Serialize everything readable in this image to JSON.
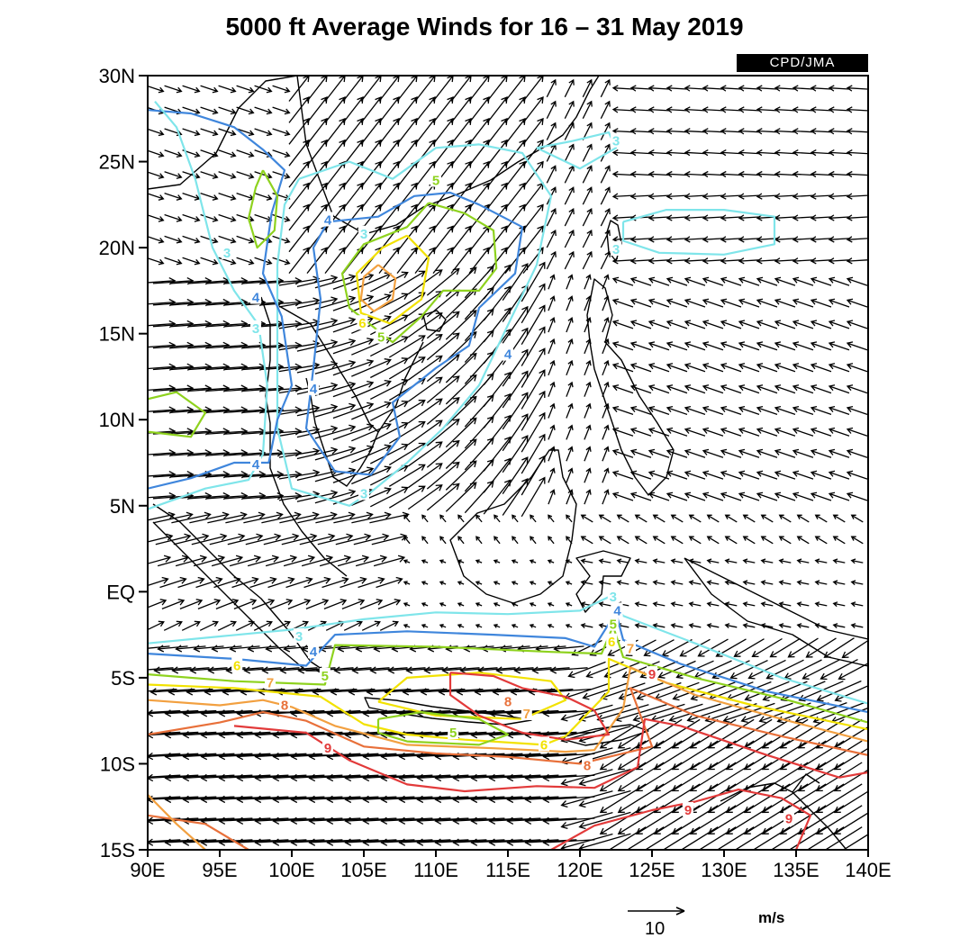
{
  "title": "5000 ft Average Winds for 16 – 31 May 2019",
  "credit": "CPD/JMA",
  "units": "m/s",
  "reference_vector": {
    "label": "10",
    "magnitude": 10
  },
  "map": {
    "lon_range": [
      90,
      140
    ],
    "lat_range": [
      -15,
      30
    ],
    "lat_ticks": [
      {
        "value": 30,
        "label": "30N"
      },
      {
        "value": 25,
        "label": "25N"
      },
      {
        "value": 20,
        "label": "20N"
      },
      {
        "value": 15,
        "label": "15N"
      },
      {
        "value": 10,
        "label": "10N"
      },
      {
        "value": 5,
        "label": "5N"
      },
      {
        "value": 0,
        "label": "EQ"
      },
      {
        "value": -5,
        "label": "5S"
      },
      {
        "value": -10,
        "label": "10S"
      },
      {
        "value": -15,
        "label": "15S"
      }
    ],
    "lon_ticks": [
      {
        "value": 90,
        "label": "90E"
      },
      {
        "value": 95,
        "label": "95E"
      },
      {
        "value": 100,
        "label": "100E"
      },
      {
        "value": 105,
        "label": "105E"
      },
      {
        "value": 110,
        "label": "110E"
      },
      {
        "value": 115,
        "label": "115E"
      },
      {
        "value": 120,
        "label": "120E"
      },
      {
        "value": 125,
        "label": "125E"
      },
      {
        "value": 130,
        "label": "130E"
      },
      {
        "value": 135,
        "label": "135E"
      },
      {
        "value": 140,
        "label": "140E"
      }
    ]
  },
  "contour_colors": {
    "3": "#7fe5ea",
    "4": "#3f86dc",
    "5": "#8ed21e",
    "6": "#f2e200",
    "7": "#f2a040",
    "8": "#e8703a",
    "9": "#e23a3a"
  },
  "contours": [
    {
      "level": 3,
      "points": [
        [
          90,
          -3
        ],
        [
          95,
          -2.6
        ],
        [
          100,
          -2.2
        ],
        [
          105,
          -1.6
        ],
        [
          110,
          -1.2
        ],
        [
          115,
          -1.3
        ],
        [
          120,
          -1.1
        ],
        [
          122,
          -0.3
        ],
        [
          123,
          -1.4
        ],
        [
          128,
          -3
        ],
        [
          134,
          -5
        ],
        [
          140,
          -6.5
        ]
      ]
    },
    {
      "level": 4,
      "points": [
        [
          90,
          -3.6
        ],
        [
          96,
          -3.9
        ],
        [
          101,
          -4.3
        ],
        [
          103,
          -2.5
        ],
        [
          108,
          -2.3
        ],
        [
          114,
          -2.5
        ],
        [
          119,
          -2.7
        ],
        [
          121,
          -3.2
        ],
        [
          122.5,
          -1.2
        ],
        [
          123,
          -2.8
        ],
        [
          127,
          -4.2
        ],
        [
          133,
          -5.8
        ],
        [
          140,
          -7
        ]
      ]
    },
    {
      "level": 5,
      "points": [
        [
          90,
          -4.8
        ],
        [
          96,
          -5.2
        ],
        [
          102.3,
          -5.4
        ],
        [
          103,
          -3.1
        ],
        [
          110,
          -3.2
        ],
        [
          118,
          -3.5
        ],
        [
          121.5,
          -3.6
        ],
        [
          122.3,
          -2
        ],
        [
          123,
          -3.8
        ],
        [
          128,
          -5
        ],
        [
          134,
          -6.2
        ],
        [
          140,
          -7.6
        ]
      ]
    },
    {
      "level": 6,
      "points": [
        [
          90,
          -5.4
        ],
        [
          96,
          -5.6
        ],
        [
          102,
          -6.1
        ],
        [
          105,
          -7.7
        ],
        [
          108,
          -8.3
        ],
        [
          112,
          -8.6
        ],
        [
          117.5,
          -8.9
        ],
        [
          119,
          -8.4
        ],
        [
          122,
          -5.8
        ],
        [
          122,
          -3.9
        ],
        [
          126,
          -5.3
        ],
        [
          132,
          -6.6
        ],
        [
          140,
          -8
        ]
      ]
    },
    {
      "level": 7,
      "points": [
        [
          90,
          -6.3
        ],
        [
          95,
          -6.6
        ],
        [
          98,
          -6.3
        ],
        [
          100,
          -6.7
        ],
        [
          103,
          -7.8
        ],
        [
          108,
          -8.9
        ],
        [
          114,
          -9.1
        ],
        [
          119,
          -9.3
        ],
        [
          121,
          -9.2
        ],
        [
          123,
          -6.8
        ],
        [
          123.5,
          -4.4
        ],
        [
          128,
          -6
        ],
        [
          134,
          -7.4
        ],
        [
          140,
          -8.7
        ]
      ]
    },
    {
      "level": 8,
      "points": [
        [
          90,
          -8.3
        ],
        [
          95,
          -7.6
        ],
        [
          98,
          -7
        ],
        [
          101,
          -7.5
        ],
        [
          105,
          -9
        ],
        [
          110,
          -9.4
        ],
        [
          115,
          -9.6
        ],
        [
          120,
          -10
        ],
        [
          125,
          -9
        ],
        [
          123.5,
          -5.6
        ],
        [
          128,
          -7.2
        ],
        [
          134,
          -8.4
        ],
        [
          140,
          -9.5
        ]
      ]
    },
    {
      "level": 9,
      "points": [
        [
          96,
          -7.8
        ],
        [
          101,
          -8.2
        ],
        [
          104,
          -9.8
        ],
        [
          108,
          -11.2
        ],
        [
          112,
          -11.6
        ],
        [
          117,
          -11.3
        ],
        [
          121,
          -11.4
        ],
        [
          124,
          -10.2
        ],
        [
          124.5,
          -7.4
        ],
        [
          127,
          -7.8
        ],
        [
          133,
          -9.5
        ],
        [
          138,
          -10.8
        ],
        [
          140,
          -10.5
        ]
      ]
    },
    {
      "level": 9,
      "points": [
        [
          118,
          -15
        ],
        [
          121,
          -13.6
        ],
        [
          125,
          -12.7
        ],
        [
          128,
          -12.2
        ],
        [
          131,
          -11.5
        ],
        [
          134,
          -12
        ],
        [
          136,
          -13
        ],
        [
          135,
          -15
        ]
      ]
    },
    {
      "level": 8,
      "points": [
        [
          90,
          -13
        ],
        [
          94,
          -13.5
        ],
        [
          97,
          -15
        ]
      ]
    },
    {
      "level": 7,
      "points": [
        [
          90,
          -11.8
        ],
        [
          92,
          -13.5
        ],
        [
          94,
          -15
        ]
      ]
    },
    {
      "level": 6,
      "points": [
        [
          106,
          -6.4
        ],
        [
          108,
          -5
        ],
        [
          113,
          -4.7
        ],
        [
          118,
          -5.2
        ],
        [
          119,
          -6.3
        ],
        [
          116,
          -7.4
        ],
        [
          110,
          -7.2
        ],
        [
          106,
          -6.4
        ]
      ]
    },
    {
      "level": 5,
      "points": [
        [
          106,
          -7.4
        ],
        [
          109,
          -7
        ],
        [
          113,
          -7.4
        ],
        [
          115,
          -8.3
        ],
        [
          113,
          -8.9
        ],
        [
          108,
          -8.7
        ],
        [
          106,
          -8.2
        ],
        [
          106,
          -7.4
        ]
      ]
    },
    {
      "level": 9,
      "points": [
        [
          111,
          -4.7
        ],
        [
          114,
          -4.9
        ],
        [
          116,
          -5.6
        ],
        [
          119,
          -6.1
        ],
        [
          121,
          -6.9
        ],
        [
          122,
          -8.3
        ],
        [
          119,
          -8.6
        ],
        [
          116,
          -8.2
        ],
        [
          113,
          -7.2
        ],
        [
          111,
          -6
        ],
        [
          111,
          -4.7
        ]
      ]
    },
    {
      "level": 5,
      "points": [
        [
          109.5,
          22.6
        ],
        [
          112,
          22
        ],
        [
          114,
          21
        ],
        [
          114.2,
          18.8
        ],
        [
          113,
          17.5
        ],
        [
          110.5,
          17.5
        ],
        [
          109,
          16
        ],
        [
          107,
          14.5
        ],
        [
          104,
          16.5
        ],
        [
          103.5,
          18.5
        ],
        [
          105,
          20.2
        ],
        [
          108,
          21.2
        ],
        [
          109.5,
          22.6
        ]
      ]
    },
    {
      "level": 6,
      "points": [
        [
          108,
          20.7
        ],
        [
          109.5,
          19.4
        ],
        [
          109,
          17
        ],
        [
          106.8,
          15.6
        ],
        [
          104.8,
          16.2
        ],
        [
          104.5,
          18.5
        ],
        [
          106.3,
          20
        ],
        [
          108,
          20.7
        ]
      ]
    },
    {
      "level": 7,
      "points": [
        [
          106,
          19
        ],
        [
          107.2,
          18.2
        ],
        [
          107,
          17
        ],
        [
          105.7,
          16.3
        ],
        [
          104.8,
          17
        ],
        [
          105,
          18.3
        ],
        [
          106,
          19
        ]
      ]
    },
    {
      "level": 4,
      "points": [
        [
          102.5,
          21.5
        ],
        [
          106,
          21.8
        ],
        [
          108.5,
          23
        ],
        [
          111,
          23.2
        ],
        [
          113,
          22.5
        ],
        [
          116,
          21.2
        ],
        [
          115.5,
          18.5
        ],
        [
          113,
          16.5
        ],
        [
          112.3,
          14.3
        ],
        [
          110,
          13
        ],
        [
          107,
          11
        ],
        [
          107.5,
          9
        ],
        [
          105.5,
          6.8
        ],
        [
          103,
          7
        ],
        [
          101,
          9.5
        ],
        [
          101.5,
          13
        ],
        [
          102,
          17
        ],
        [
          101.5,
          20
        ],
        [
          102.5,
          21.5
        ]
      ]
    },
    {
      "level": 3,
      "points": [
        [
          100.5,
          24
        ],
        [
          104,
          25
        ],
        [
          107,
          24
        ],
        [
          110,
          25.8
        ],
        [
          113,
          26
        ],
        [
          116,
          25.5
        ],
        [
          118,
          23
        ],
        [
          117,
          19
        ],
        [
          115,
          15.5
        ],
        [
          113,
          12
        ],
        [
          110.5,
          9.5
        ],
        [
          108,
          7.5
        ],
        [
          105.5,
          5.8
        ],
        [
          104,
          5
        ],
        [
          100,
          6
        ],
        [
          99,
          9.5
        ],
        [
          99,
          14
        ],
        [
          99,
          19
        ],
        [
          99.5,
          22.5
        ],
        [
          100.5,
          24
        ]
      ]
    },
    {
      "level": 4,
      "points": [
        [
          90,
          6
        ],
        [
          93,
          6.6
        ],
        [
          96,
          7.5
        ],
        [
          98.4,
          7.5
        ],
        [
          99,
          10
        ],
        [
          100,
          12
        ],
        [
          99.3,
          16
        ],
        [
          98,
          18.5
        ],
        [
          98.6,
          22
        ],
        [
          99.5,
          24.5
        ],
        [
          98,
          25.7
        ],
        [
          96,
          27
        ],
        [
          93,
          27.8
        ],
        [
          90,
          28
        ]
      ]
    },
    {
      "level": 3,
      "points": [
        [
          90,
          4.8
        ],
        [
          94,
          6
        ],
        [
          97,
          6.5
        ],
        [
          98,
          8
        ],
        [
          98.3,
          12
        ],
        [
          97.7,
          15.5
        ],
        [
          96,
          17.5
        ],
        [
          94.5,
          20
        ],
        [
          93.3,
          24
        ],
        [
          92,
          27
        ],
        [
          90.5,
          28.5
        ]
      ]
    },
    {
      "level": 5,
      "points": [
        [
          90,
          11.2
        ],
        [
          92,
          11.6
        ],
        [
          94,
          10.4
        ],
        [
          93,
          9
        ],
        [
          90,
          9.3
        ]
      ]
    },
    {
      "level": 5,
      "points": [
        [
          98,
          24.5
        ],
        [
          99,
          23
        ],
        [
          98.8,
          21
        ],
        [
          97.6,
          20
        ],
        [
          97,
          21.7
        ],
        [
          97.5,
          23.5
        ],
        [
          98,
          24.5
        ]
      ]
    },
    {
      "level": 3,
      "points": [
        [
          123,
          21.5
        ],
        [
          126,
          22.2
        ],
        [
          130,
          22.2
        ],
        [
          133.5,
          21.8
        ],
        [
          133.5,
          20.2
        ],
        [
          130,
          19.6
        ],
        [
          125.5,
          19.7
        ],
        [
          123,
          20.4
        ],
        [
          123,
          21.5
        ]
      ]
    },
    {
      "level": 3,
      "points": [
        [
          117,
          25.8
        ],
        [
          119.5,
          26.2
        ],
        [
          122,
          26.7
        ],
        [
          122.5,
          25.8
        ],
        [
          120,
          24.6
        ],
        [
          117,
          25.8
        ]
      ]
    }
  ],
  "contour_labels": [
    {
      "text": "3",
      "level": 3,
      "lon": 122.5,
      "lat": 26.2
    },
    {
      "text": "5",
      "level": 5,
      "lon": 110,
      "lat": 23.9
    },
    {
      "text": "4",
      "level": 4,
      "lon": 102.5,
      "lat": 21.6
    },
    {
      "text": "3",
      "level": 3,
      "lon": 105,
      "lat": 20.8
    },
    {
      "text": "3",
      "level": 3,
      "lon": 95.5,
      "lat": 19.7
    },
    {
      "text": "3",
      "level": 3,
      "lon": 122.5,
      "lat": 19.9
    },
    {
      "text": "4",
      "level": 4,
      "lon": 97.5,
      "lat": 17.1
    },
    {
      "text": "6",
      "level": 6,
      "lon": 104.9,
      "lat": 15.6
    },
    {
      "text": "5",
      "level": 5,
      "lon": 106.2,
      "lat": 14.8
    },
    {
      "text": "3",
      "level": 3,
      "lon": 97.5,
      "lat": 15.3
    },
    {
      "text": "4",
      "level": 4,
      "lon": 115,
      "lat": 13.8
    },
    {
      "text": "4",
      "level": 4,
      "lon": 101.5,
      "lat": 11.8
    },
    {
      "text": "4",
      "level": 4,
      "lon": 97.5,
      "lat": 7.4
    },
    {
      "text": "3",
      "level": 3,
      "lon": 105,
      "lat": 5.7
    },
    {
      "text": "3",
      "level": 3,
      "lon": 122.3,
      "lat": -0.3
    },
    {
      "text": "3",
      "level": 3,
      "lon": 100.5,
      "lat": -2.6
    },
    {
      "text": "4",
      "level": 4,
      "lon": 101.5,
      "lat": -3.5
    },
    {
      "text": "4",
      "level": 4,
      "lon": 122.6,
      "lat": -1.1
    },
    {
      "text": "5",
      "level": 5,
      "lon": 122.3,
      "lat": -1.9
    },
    {
      "text": "6",
      "level": 6,
      "lon": 122.2,
      "lat": -2.9
    },
    {
      "text": "7",
      "level": 7,
      "lon": 123.5,
      "lat": -3.3
    },
    {
      "text": "9",
      "level": 9,
      "lon": 125,
      "lat": -4.8
    },
    {
      "text": "6",
      "level": 6,
      "lon": 96.2,
      "lat": -4.3
    },
    {
      "text": "7",
      "level": 7,
      "lon": 98.5,
      "lat": -5.3
    },
    {
      "text": "5",
      "level": 5,
      "lon": 102.3,
      "lat": -4.9
    },
    {
      "text": "8",
      "level": 8,
      "lon": 99.5,
      "lat": -6.6
    },
    {
      "text": "8",
      "level": 8,
      "lon": 115,
      "lat": -6.4
    },
    {
      "text": "7",
      "level": 7,
      "lon": 116.3,
      "lat": -7.1
    },
    {
      "text": "5",
      "level": 5,
      "lon": 111.2,
      "lat": -8.2
    },
    {
      "text": "6",
      "level": 6,
      "lon": 117.5,
      "lat": -8.9
    },
    {
      "text": "9",
      "level": 9,
      "lon": 102.5,
      "lat": -9.1
    },
    {
      "text": "8",
      "level": 8,
      "lon": 120.5,
      "lat": -10.1
    },
    {
      "text": "9",
      "level": 9,
      "lon": 127.5,
      "lat": -12.7
    },
    {
      "text": "9",
      "level": 9,
      "lon": 134.5,
      "lat": -13.2
    }
  ]
}
